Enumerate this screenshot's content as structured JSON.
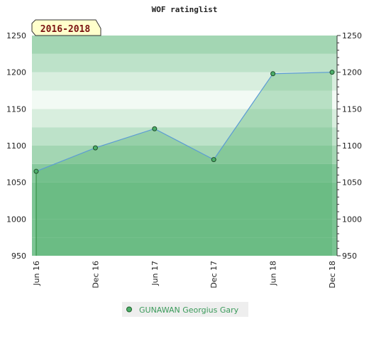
{
  "chart_data": {
    "type": "area",
    "title": "WOF ratinglist",
    "period_badge": "2016-2018",
    "x": [
      "Jun 16",
      "Dec 16",
      "Jun 17",
      "Dec 17",
      "Jun 18",
      "Dec 18"
    ],
    "series": [
      {
        "name": "GUNAWAN Georgius Gary",
        "values": [
          1065,
          1097,
          1123,
          1081,
          1198,
          1200
        ]
      }
    ],
    "y_ticks": [
      950,
      1000,
      1050,
      1100,
      1150,
      1200,
      1250
    ],
    "ylim": [
      950,
      1250
    ],
    "grid": true,
    "legend_position": "bottom-center",
    "colors": {
      "line": "#5b9bd5",
      "area": "#4caf6a",
      "marker": "#2e8b3e",
      "band_light": "#f2faf4",
      "band_dark": "#7bc493",
      "badge_bg": "#ffffcc",
      "legend_bg": "#eeeeee",
      "legend_text": "#3a9a5a"
    }
  }
}
